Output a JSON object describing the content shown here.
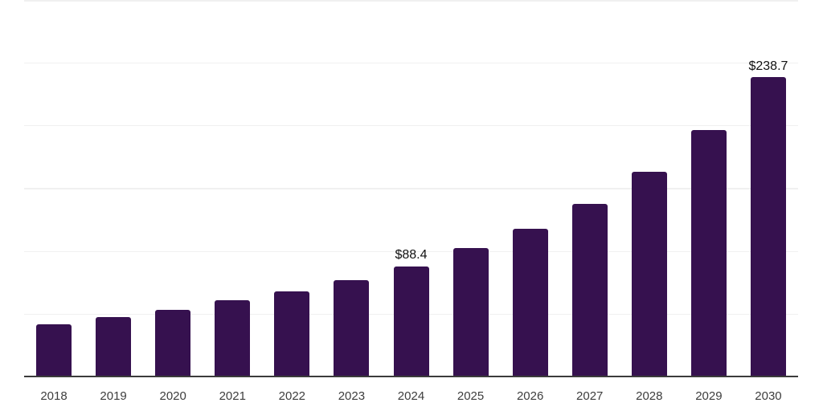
{
  "chart_data": {
    "type": "bar",
    "categories": [
      "2018",
      "2019",
      "2020",
      "2021",
      "2022",
      "2023",
      "2024",
      "2025",
      "2026",
      "2027",
      "2028",
      "2029",
      "2030"
    ],
    "values": [
      42.3,
      48.0,
      53.4,
      61.3,
      68.3,
      77.3,
      88.4,
      102.9,
      117.8,
      138.1,
      163.3,
      196.8,
      238.7
    ],
    "data_labels": [
      "",
      "",
      "",
      "",
      "",
      "",
      "$88.4",
      "",
      "",
      "",
      "",
      "",
      "$238.7"
    ],
    "xlabel": "",
    "ylabel": "",
    "ylim": [
      0,
      300
    ],
    "gridlines": [
      0,
      50,
      100,
      150,
      200,
      250,
      300
    ],
    "grid": "horizontal-only",
    "legend_position": "none",
    "y_axis_labels_visible": false,
    "bar_color": "#36114F",
    "axis_line_color": "#3B3B3B",
    "gridline_color": "#F0F0F0",
    "tick_label_color": "#3D3D3D",
    "data_label_color": "#111111",
    "background_color": "#FFFFFF"
  }
}
